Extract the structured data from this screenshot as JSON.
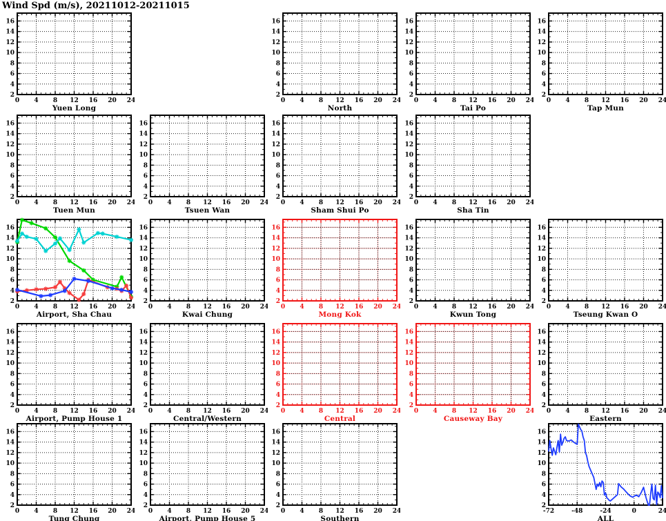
{
  "page": {
    "title": "Wind Spd (m/s), 20211012-20211015"
  },
  "colors": {
    "axis": "#000000",
    "red_accent": "#f01414",
    "red_grid_underlay": "#f6a8a8",
    "grid": "#1a1a1a",
    "series_green": "#00d800",
    "series_cyan": "#00d2d2",
    "series_blue": "#1e3cff",
    "series_red": "#f53c3c"
  },
  "chart_data": {
    "type": "line",
    "title": "Wind Spd (m/s), 20211012-20211015",
    "grid": "dotted",
    "layout": "5x5 small-multiple grid of wind speed panels",
    "default_axes": {
      "xlim": [
        0,
        24
      ],
      "xticks": [
        0,
        4,
        8,
        12,
        16,
        20,
        24
      ],
      "ylim": [
        2,
        17.5
      ],
      "yticks": [
        2,
        4,
        6,
        8,
        10,
        12,
        14,
        16
      ]
    },
    "panels": [
      {
        "name": "Yuen Long",
        "row": 1,
        "col": 1
      },
      {
        "name": "North",
        "row": 1,
        "col": 3
      },
      {
        "name": "Tai Po",
        "row": 1,
        "col": 4
      },
      {
        "name": "Tap Mun",
        "row": 1,
        "col": 5
      },
      {
        "name": "Tuen Mun",
        "row": 2,
        "col": 1
      },
      {
        "name": "Tsuen Wan",
        "row": 2,
        "col": 2
      },
      {
        "name": "Sham Shui Po",
        "row": 2,
        "col": 3
      },
      {
        "name": "Sha Tin",
        "row": 2,
        "col": 4
      },
      {
        "name": "Airport, Sha Chau",
        "row": 3,
        "col": 1,
        "series": [
          {
            "name": "green-line",
            "color": "series_green",
            "markers": true,
            "points": [
              [
                0,
                13.2
              ],
              [
                1,
                17.4
              ],
              [
                3,
                16.8
              ],
              [
                6,
                15.8
              ],
              [
                8,
                14.1
              ],
              [
                11,
                9.6
              ],
              [
                14,
                7.8
              ],
              [
                16,
                6.0
              ],
              [
                21,
                4.7
              ],
              [
                22,
                6.5
              ],
              [
                24,
                2.8
              ]
            ]
          },
          {
            "name": "cyan-line",
            "color": "series_cyan",
            "markers": true,
            "points": [
              [
                0,
                13.4
              ],
              [
                1,
                14.8
              ],
              [
                2,
                14.2
              ],
              [
                4,
                13.8
              ],
              [
                6,
                11.5
              ],
              [
                8,
                12.9
              ],
              [
                9,
                13.9
              ],
              [
                11,
                11.7
              ],
              [
                13,
                15.6
              ],
              [
                14,
                13.1
              ],
              [
                17,
                14.9
              ],
              [
                18,
                14.8
              ],
              [
                21,
                14.2
              ],
              [
                24,
                13.6
              ]
            ]
          },
          {
            "name": "red-line",
            "color": "series_red",
            "markers": true,
            "points": [
              [
                0,
                3.8
              ],
              [
                2,
                4.0
              ],
              [
                4,
                4.2
              ],
              [
                6,
                4.3
              ],
              [
                8,
                4.6
              ],
              [
                9,
                5.6
              ],
              [
                10,
                4.4
              ],
              [
                11,
                3.5
              ],
              [
                13,
                2.2
              ],
              [
                14,
                3.3
              ],
              [
                15,
                6.0
              ],
              [
                19,
                4.6
              ],
              [
                21,
                4.3
              ],
              [
                22,
                3.9
              ],
              [
                23,
                4.9
              ],
              [
                24,
                2.6
              ]
            ]
          },
          {
            "name": "blue-line",
            "color": "series_blue",
            "markers": true,
            "points": [
              [
                0,
                4.1
              ],
              [
                5,
                2.9
              ],
              [
                7,
                3.1
              ],
              [
                10,
                3.9
              ],
              [
                12,
                6.2
              ],
              [
                15,
                5.8
              ],
              [
                20,
                4.4
              ],
              [
                22,
                4.1
              ],
              [
                24,
                3.7
              ]
            ]
          }
        ]
      },
      {
        "name": "Kwai Chung",
        "row": 3,
        "col": 2
      },
      {
        "name": "Mong Kok",
        "row": 3,
        "col": 3,
        "accent": "red"
      },
      {
        "name": "Kwun Tong",
        "row": 3,
        "col": 4
      },
      {
        "name": "Tseung Kwan O",
        "row": 3,
        "col": 5
      },
      {
        "name": "Airport, Pump House 1",
        "row": 4,
        "col": 1
      },
      {
        "name": "Central/Western",
        "row": 4,
        "col": 2
      },
      {
        "name": "Central",
        "row": 4,
        "col": 3,
        "accent": "red"
      },
      {
        "name": "Causeway Bay",
        "row": 4,
        "col": 4,
        "accent": "red"
      },
      {
        "name": "Eastern",
        "row": 4,
        "col": 5
      },
      {
        "name": "Tung Chung",
        "row": 5,
        "col": 1
      },
      {
        "name": "Airport, Pump House 5",
        "row": 5,
        "col": 2
      },
      {
        "name": "Southern",
        "row": 5,
        "col": 3
      },
      {
        "name": "ALL",
        "row": 5,
        "col": 5,
        "xlim": [
          -72,
          24
        ],
        "xticks": [
          -72,
          -48,
          -24,
          0,
          24
        ],
        "minor_x_step": 4,
        "series": [
          {
            "name": "blue-line",
            "color": "series_blue",
            "markers": false,
            "points": [
              [
                -72,
                12.3
              ],
              [
                -71,
                14.3
              ],
              [
                -70,
                12.8
              ],
              [
                -69,
                11.5
              ],
              [
                -68,
                12.9
              ],
              [
                -66,
                11.6
              ],
              [
                -65,
                13.0
              ],
              [
                -64,
                14.3
              ],
              [
                -63,
                12.1
              ],
              [
                -62,
                15.5
              ],
              [
                -61,
                13.4
              ],
              [
                -60,
                14.0
              ],
              [
                -59,
                14.7
              ],
              [
                -58,
                15.0
              ],
              [
                -57,
                14.3
              ],
              [
                -55,
                14.2
              ],
              [
                -53,
                14.4
              ],
              [
                -51,
                14.0
              ],
              [
                -49,
                13.7
              ],
              [
                -48,
                13.6
              ],
              [
                -47,
                17.4
              ],
              [
                -46,
                16.9
              ],
              [
                -45,
                16.4
              ],
              [
                -44,
                16.1
              ],
              [
                -43,
                15.0
              ],
              [
                -42,
                14.3
              ],
              [
                -41,
                12.0
              ],
              [
                -40,
                11.4
              ],
              [
                -39,
                10.3
              ],
              [
                -38,
                9.4
              ],
              [
                -36,
                8.3
              ],
              [
                -34,
                7.3
              ],
              [
                -32,
                5.0
              ],
              [
                -31,
                6.0
              ],
              [
                -30,
                5.6
              ],
              [
                -29,
                6.3
              ],
              [
                -28,
                5.5
              ],
              [
                -27,
                6.6
              ],
              [
                -26,
                6.3
              ],
              [
                -25,
                3.9
              ],
              [
                -24,
                4.3
              ],
              [
                -23,
                3.4
              ],
              [
                -22,
                3.2
              ],
              [
                -21,
                2.9
              ],
              [
                -20,
                2.8
              ],
              [
                -18,
                3.2
              ],
              [
                -16,
                3.6
              ],
              [
                -14,
                4.0
              ],
              [
                -13,
                6.1
              ],
              [
                -11,
                5.5
              ],
              [
                -9,
                5.1
              ],
              [
                -7,
                4.6
              ],
              [
                -5,
                4.1
              ],
              [
                -3,
                3.7
              ],
              [
                -1,
                3.5
              ],
              [
                0,
                3.7
              ],
              [
                2,
                3.9
              ],
              [
                4,
                3.6
              ],
              [
                6,
                4.4
              ],
              [
                8,
                5.4
              ],
              [
                10,
                3.5
              ],
              [
                12,
                2.0
              ],
              [
                13,
                2.0
              ],
              [
                14,
                4.2
              ],
              [
                15,
                6.0
              ],
              [
                16,
                3.3
              ],
              [
                17,
                3.0
              ],
              [
                18,
                5.8
              ],
              [
                19,
                2.1
              ],
              [
                20,
                4.5
              ],
              [
                21,
                4.2
              ],
              [
                22,
                3.4
              ],
              [
                23,
                5.7
              ],
              [
                24,
                3.4
              ]
            ]
          }
        ]
      }
    ]
  }
}
